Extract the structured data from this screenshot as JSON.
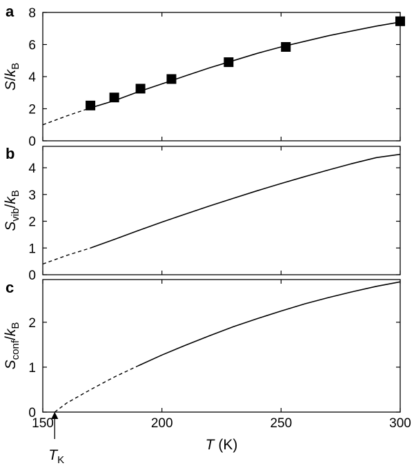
{
  "chart_data": [
    {
      "type": "line",
      "panel": "a",
      "ylabel": {
        "main": "S",
        "sep": "/",
        "k": "k",
        "sub": "B"
      },
      "xlim": [
        150,
        300
      ],
      "ylim": [
        0,
        8
      ],
      "yticks": [
        0,
        2,
        4,
        6,
        8
      ],
      "grid": false,
      "series": [
        {
          "style": "dashed",
          "x": [
            150,
            160,
            170
          ],
          "y": [
            1.0,
            1.55,
            2.05
          ]
        },
        {
          "style": "solid",
          "x": [
            170,
            180,
            190,
            200,
            210,
            220,
            230,
            240,
            250,
            260,
            270,
            280,
            290,
            300
          ],
          "y": [
            2.05,
            2.5,
            3.05,
            3.55,
            4.05,
            4.55,
            5.0,
            5.45,
            5.85,
            6.2,
            6.55,
            6.85,
            7.15,
            7.4
          ]
        },
        {
          "style": "markers",
          "marker": "square",
          "x": [
            170,
            180,
            191,
            204,
            228,
            252,
            300
          ],
          "y": [
            2.2,
            2.7,
            3.25,
            3.85,
            4.9,
            5.85,
            7.45
          ]
        }
      ]
    },
    {
      "type": "line",
      "panel": "b",
      "ylabel": {
        "main": "S",
        "mainsub": "vib",
        "sep": "/",
        "k": "k",
        "sub": "B"
      },
      "xlim": [
        150,
        300
      ],
      "ylim": [
        0,
        4.8
      ],
      "yticks": [
        0,
        1,
        2,
        3,
        4
      ],
      "grid": false,
      "series": [
        {
          "style": "dashed",
          "x": [
            150,
            160,
            170
          ],
          "y": [
            0.4,
            0.72,
            1.0
          ]
        },
        {
          "style": "solid",
          "x": [
            170,
            180,
            190,
            200,
            210,
            220,
            230,
            240,
            250,
            260,
            270,
            280,
            290,
            300
          ],
          "y": [
            1.0,
            1.32,
            1.65,
            1.97,
            2.27,
            2.57,
            2.86,
            3.14,
            3.41,
            3.67,
            3.92,
            4.16,
            4.38,
            4.5
          ]
        }
      ]
    },
    {
      "type": "line",
      "panel": "c",
      "ylabel": {
        "main": "S",
        "mainsub": "conf",
        "sep": "/",
        "k": "k",
        "sub": "B"
      },
      "xlabel": {
        "main": "T",
        "unit": "(K)"
      },
      "xlim": [
        150,
        300
      ],
      "ylim": [
        0,
        2.95
      ],
      "yticks": [
        0,
        1,
        2
      ],
      "xticks": [
        150,
        200,
        250,
        300
      ],
      "grid": false,
      "series": [
        {
          "style": "dashed",
          "x": [
            155,
            160,
            170,
            180,
            190
          ],
          "y": [
            0.0,
            0.2,
            0.5,
            0.78,
            1.03
          ]
        },
        {
          "style": "solid",
          "x": [
            190,
            200,
            210,
            220,
            230,
            240,
            250,
            260,
            270,
            280,
            290,
            300
          ],
          "y": [
            1.03,
            1.27,
            1.49,
            1.7,
            1.9,
            2.08,
            2.25,
            2.41,
            2.55,
            2.68,
            2.8,
            2.9
          ]
        }
      ],
      "annotation": {
        "text": "T",
        "sub": "K",
        "x": 155
      }
    }
  ]
}
